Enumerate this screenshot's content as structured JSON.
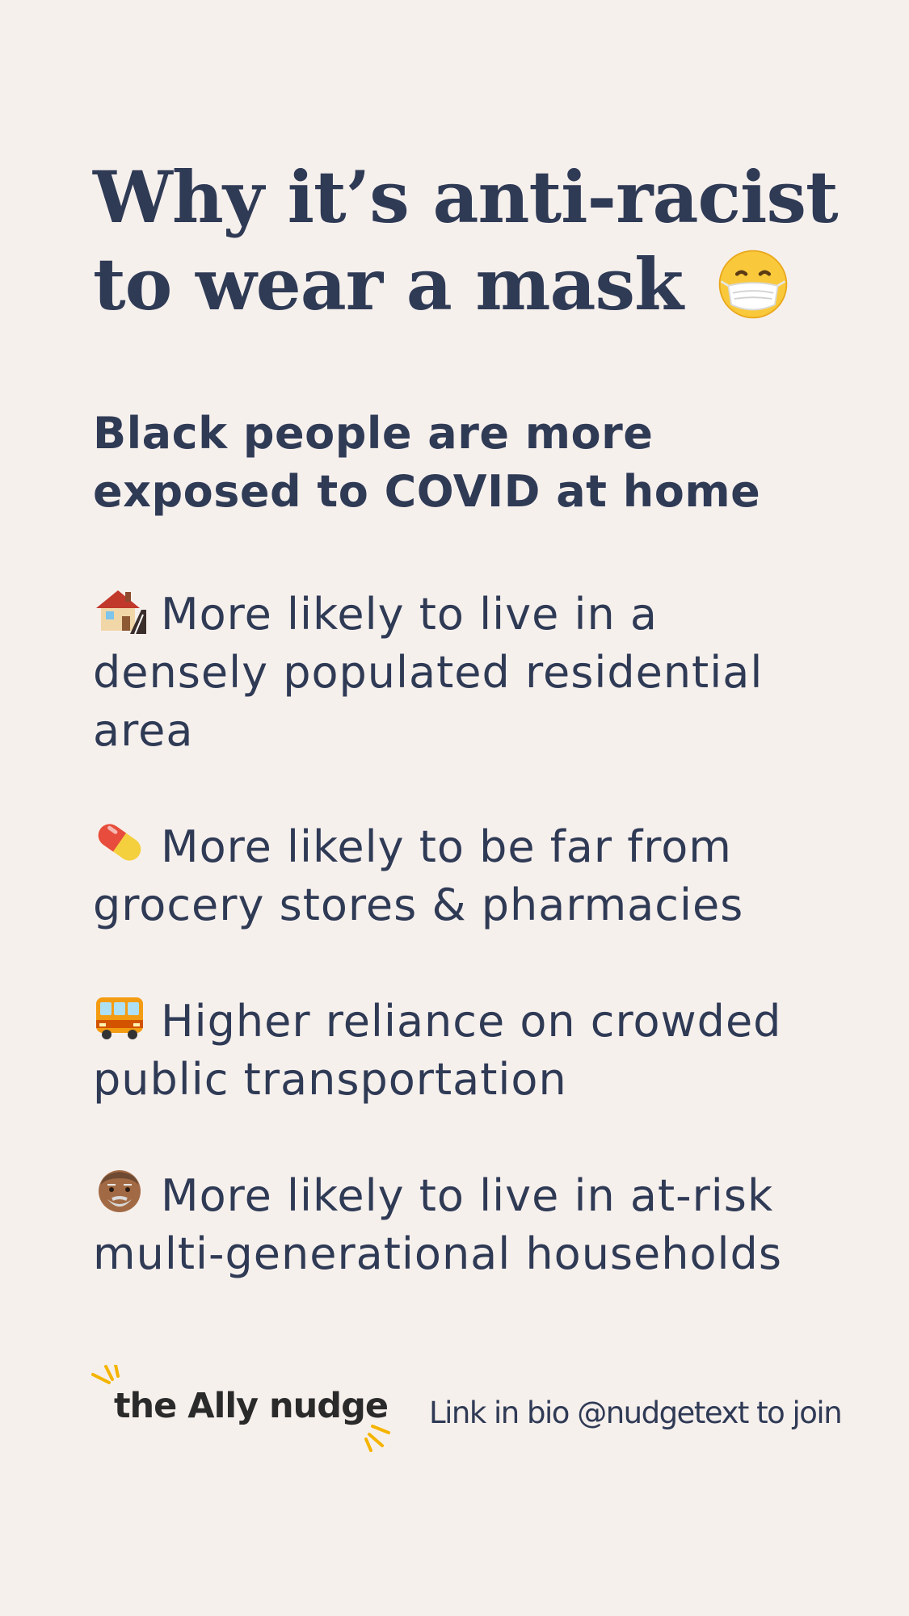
{
  "title": {
    "line1": "Why it’s anti-racist",
    "line2": "to wear a mask",
    "emoji": "face-with-medical-mask-icon"
  },
  "subtitle": {
    "line1": "Black people are more",
    "line2": "exposed to COVID at home"
  },
  "items": [
    {
      "icon": "house-icon",
      "lines": [
        "More likely to live in a",
        "densely populated residential",
        "area"
      ]
    },
    {
      "icon": "pill-icon",
      "lines": [
        "More likely to be far from",
        "grocery stores & pharmacies"
      ]
    },
    {
      "icon": "bus-icon",
      "lines": [
        "Higher reliance on crowded",
        "public transportation"
      ]
    },
    {
      "icon": "older-man-icon",
      "lines": [
        "More likely to live in at-risk",
        "multi-generational households"
      ]
    }
  ],
  "footer": {
    "logo_text": "the Ally nudge",
    "cta": "Link in bio @nudgetext to join"
  },
  "colors": {
    "background": "#f6f0ed",
    "text": "#2f3a55",
    "logo_accent": "#f4b400"
  }
}
